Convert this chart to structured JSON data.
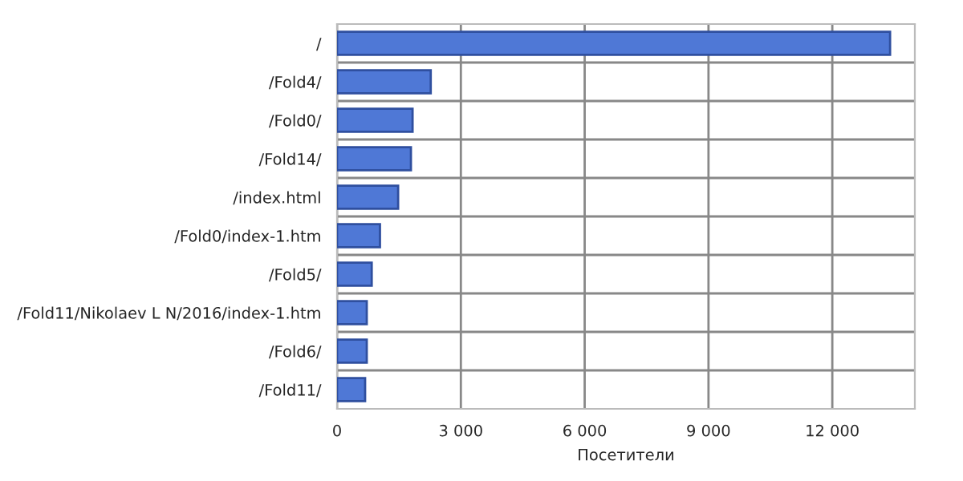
{
  "chart_data": {
    "type": "bar",
    "orientation": "horizontal",
    "xlabel": "Посетители",
    "categories": [
      "/",
      "/Fold4/",
      "/Fold0/",
      "/Fold14/",
      "/index.html",
      "/Fold0/index-1.htm",
      "/Fold5/",
      "/Fold11/Nikolaev L N/2016/index-1.htm",
      "/Fold6/",
      "/Fold11/"
    ],
    "values": [
      13400,
      2270,
      1830,
      1790,
      1480,
      1040,
      840,
      720,
      720,
      680
    ],
    "color": "#4f78d6",
    "xlim": [
      0,
      14000
    ],
    "xticks": [
      0,
      {
        "value": 3000,
        "label": "3 000"
      },
      {
        "value": 6000,
        "label": "6 000"
      },
      {
        "value": 9000,
        "label": "9 000"
      },
      {
        "value": 12000,
        "label": "12 000"
      }
    ],
    "grid": true
  }
}
